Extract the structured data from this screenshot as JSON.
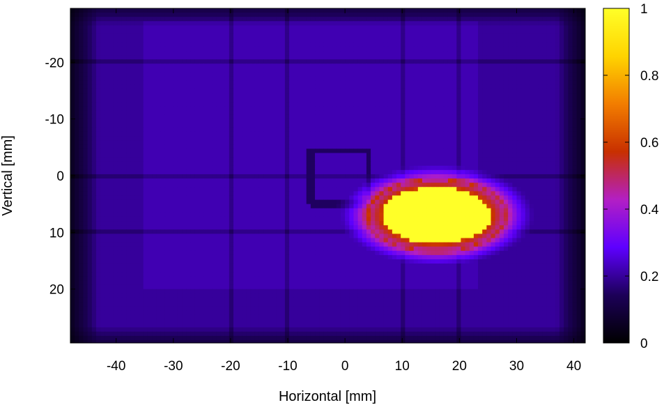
{
  "chart_data": {
    "type": "heatmap",
    "title": "",
    "xlabel": "Horizontal [mm]",
    "ylabel": "Vertical [mm]",
    "xlim": [
      -48,
      42
    ],
    "ylim": [
      -29.5,
      29.5
    ],
    "y_axis_inverted": true,
    "xticks": [
      -40,
      -30,
      -20,
      -10,
      0,
      10,
      20,
      30,
      40
    ],
    "yticks": [
      -20,
      -10,
      0,
      10,
      20
    ],
    "grid": false,
    "colorbar": {
      "min": 0,
      "max": 1,
      "ticks": [
        0,
        0.2,
        0.4,
        0.6,
        0.8,
        1
      ],
      "tick_labels": [
        "0",
        "0.2",
        "0.4",
        "0.6",
        "0.8",
        "1"
      ],
      "colormap": "black-purple-red-yellow",
      "stops": [
        "#000000",
        "#1c0058",
        "#5e00ff",
        "#b31fc4",
        "#c83000",
        "#f27d00",
        "#ffd400",
        "#ffff28"
      ]
    },
    "features": {
      "background_intensity": 0.2,
      "object_plate": {
        "x_range": [
          -35,
          23
        ],
        "y_range": [
          -27,
          20
        ],
        "intensity": 0.22
      },
      "grid_lines_x": [
        -30,
        -20,
        -10,
        0,
        10,
        20,
        30
      ],
      "grid_lines_y": [
        -20,
        -10,
        0,
        10,
        20
      ],
      "small_square": {
        "x_range": [
          -6,
          4
        ],
        "y_range": [
          -4.5,
          5
        ],
        "intensity": 0.15
      },
      "hot_spot": {
        "center": [
          16,
          7
        ],
        "radius_x": 9.5,
        "radius_y": 5,
        "peak_intensity": 1,
        "halo_intensity": 0.6
      }
    }
  }
}
